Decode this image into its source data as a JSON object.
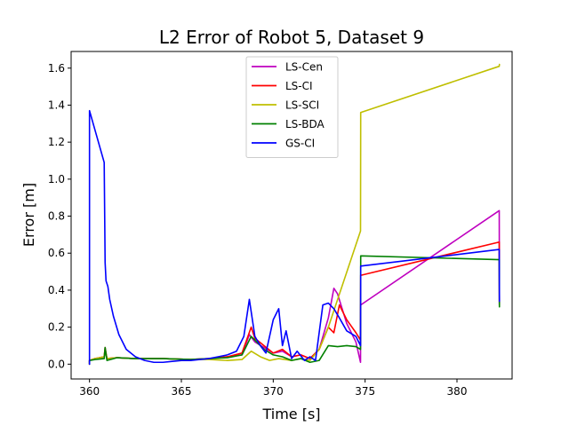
{
  "chart_data": {
    "type": "line",
    "title": "L2 Error of Robot 5, Dataset 9",
    "xlabel": "Time [s]",
    "ylabel": "Error [m]",
    "xlim": [
      359,
      383
    ],
    "ylim": [
      -0.08,
      1.69
    ],
    "xticks": [
      360,
      365,
      370,
      375,
      380
    ],
    "yticks": [
      0.0,
      0.2,
      0.4,
      0.6,
      0.8,
      1.0,
      1.2,
      1.4,
      1.6
    ],
    "xtick_labels": [
      "360",
      "365",
      "370",
      "375",
      "380"
    ],
    "ytick_labels": [
      "0.0",
      "0.2",
      "0.4",
      "0.6",
      "0.8",
      "1.0",
      "1.2",
      "1.4",
      "1.6"
    ],
    "legend_position": "top-center",
    "series": [
      {
        "name": "LS-Cen",
        "color": "#bf00bf",
        "x": [
          360.0,
          360.0,
          360.3,
          360.8,
          360.85,
          360.95,
          361.5,
          362.5,
          364.0,
          365.5,
          366.5,
          367.5,
          368.3,
          368.7,
          369.0,
          369.5,
          370.0,
          370.5,
          371.0,
          371.5,
          372.0,
          372.5,
          373.0,
          373.3,
          373.5,
          374.0,
          374.5,
          374.75,
          374.76,
          382.3,
          382.31
        ],
        "y": [
          0.0,
          0.02,
          0.03,
          0.04,
          0.08,
          0.03,
          0.035,
          0.03,
          0.03,
          0.025,
          0.03,
          0.04,
          0.05,
          0.16,
          0.12,
          0.09,
          0.06,
          0.07,
          0.04,
          0.05,
          0.03,
          0.08,
          0.25,
          0.41,
          0.38,
          0.22,
          0.12,
          0.01,
          0.32,
          0.83,
          0.33
        ]
      },
      {
        "name": "LS-CI",
        "color": "#ff0000",
        "x": [
          360.0,
          360.0,
          360.3,
          360.8,
          360.85,
          360.95,
          361.5,
          362.5,
          364.0,
          365.5,
          366.5,
          367.5,
          368.3,
          368.8,
          369.0,
          369.5,
          370.0,
          370.5,
          371.0,
          371.5,
          372.0,
          372.5,
          373.0,
          373.3,
          373.6,
          374.0,
          374.5,
          374.75,
          374.76,
          382.3,
          382.31
        ],
        "y": [
          0.0,
          0.02,
          0.03,
          0.04,
          0.09,
          0.03,
          0.035,
          0.03,
          0.03,
          0.025,
          0.03,
          0.04,
          0.06,
          0.2,
          0.14,
          0.1,
          0.06,
          0.08,
          0.04,
          0.05,
          0.03,
          0.08,
          0.2,
          0.17,
          0.32,
          0.24,
          0.17,
          0.13,
          0.48,
          0.66,
          0.32
        ]
      },
      {
        "name": "LS-SCI",
        "color": "#bfbf00",
        "x": [
          360.0,
          360.0,
          360.3,
          360.8,
          360.85,
          360.95,
          361.5,
          362.5,
          364.0,
          365.5,
          366.5,
          367.5,
          368.3,
          368.8,
          369.3,
          369.8,
          370.3,
          371.0,
          371.5,
          372.0,
          372.5,
          373.0,
          374.75,
          374.76,
          382.3,
          382.31
        ],
        "y": [
          0.0,
          0.02,
          0.03,
          0.04,
          0.08,
          0.03,
          0.035,
          0.03,
          0.03,
          0.025,
          0.025,
          0.02,
          0.025,
          0.07,
          0.04,
          0.02,
          0.03,
          0.02,
          0.03,
          0.02,
          0.08,
          0.2,
          0.72,
          1.36,
          1.61,
          1.62
        ]
      },
      {
        "name": "LS-BDA",
        "color": "#008000",
        "x": [
          360.0,
          360.0,
          360.3,
          360.8,
          360.85,
          360.95,
          361.5,
          362.5,
          364.0,
          365.5,
          366.5,
          367.5,
          368.3,
          368.8,
          369.0,
          369.5,
          370.0,
          370.5,
          371.0,
          371.5,
          372.0,
          372.5,
          373.0,
          373.5,
          374.0,
          374.5,
          374.75,
          374.76,
          382.3,
          382.31
        ],
        "y": [
          0.0,
          0.02,
          0.025,
          0.03,
          0.09,
          0.02,
          0.035,
          0.03,
          0.03,
          0.025,
          0.03,
          0.035,
          0.05,
          0.15,
          0.13,
          0.08,
          0.05,
          0.04,
          0.02,
          0.03,
          0.01,
          0.02,
          0.1,
          0.095,
          0.1,
          0.095,
          0.08,
          0.585,
          0.565,
          0.31
        ]
      },
      {
        "name": "GS-CI",
        "color": "#0000ff",
        "x": [
          360.0,
          360.0,
          360.8,
          360.85,
          360.9,
          361.0,
          361.1,
          361.3,
          361.6,
          362.0,
          362.5,
          363.0,
          363.5,
          364.0,
          364.5,
          365.0,
          365.5,
          366.0,
          366.5,
          367.0,
          367.5,
          368.0,
          368.4,
          368.7,
          369.0,
          369.3,
          369.6,
          370.0,
          370.3,
          370.5,
          370.7,
          371.0,
          371.3,
          371.7,
          372.0,
          372.3,
          372.7,
          373.0,
          373.3,
          373.6,
          374.0,
          374.5,
          374.75,
          374.76,
          382.3,
          382.31
        ],
        "y": [
          0.0,
          1.37,
          1.09,
          0.55,
          0.45,
          0.42,
          0.35,
          0.26,
          0.16,
          0.08,
          0.04,
          0.02,
          0.01,
          0.01,
          0.015,
          0.02,
          0.02,
          0.025,
          0.03,
          0.04,
          0.05,
          0.07,
          0.15,
          0.35,
          0.15,
          0.1,
          0.06,
          0.24,
          0.3,
          0.1,
          0.18,
          0.03,
          0.07,
          0.02,
          0.04,
          0.02,
          0.32,
          0.33,
          0.3,
          0.25,
          0.18,
          0.15,
          0.1,
          0.53,
          0.62,
          0.34
        ]
      }
    ]
  }
}
